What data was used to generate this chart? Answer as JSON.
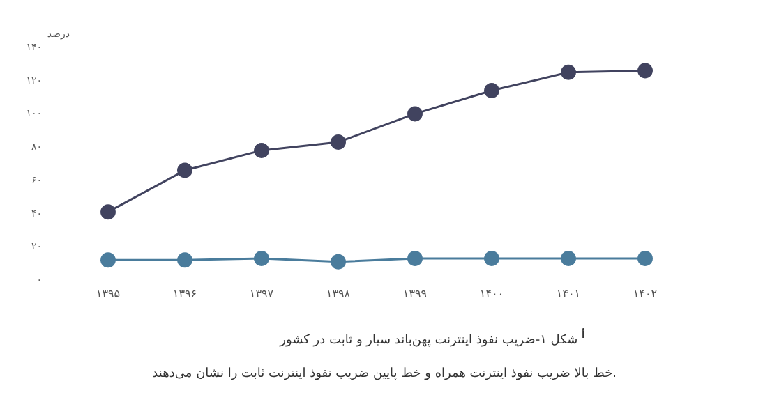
{
  "chart_data": {
    "type": "line",
    "title": "شکل ۱-ضریب نفوذ اینترنت پهن‌باند سیار و ثابت در کشور $^{أ}$",
    "ylabel": "درصد",
    "annotations": [
      "خط بالا ضریب نفوذ اینترنت همراه و خط پایین ضریب نفوذ اینترنت ثابت را نشان می‌دهند."
    ],
    "categories": [
      "۱۳۹۵",
      "۱۳۹۶",
      "۱۳۹۷",
      "۱۳۹۸",
      "۱۳۹۹",
      "۱۴۰۰",
      "۱۴۰۱",
      "۱۴۰۲"
    ],
    "series": [
      {
        "color": "#41435f",
        "values": [
          41,
          66,
          78,
          83,
          100,
          114,
          125,
          126
        ]
      },
      {
        "color": "#4a7c9c",
        "values": [
          12,
          12,
          13,
          11,
          13,
          13,
          13,
          13
        ]
      }
    ],
    "ylim": [
      0,
      140
    ],
    "yticks": [
      {
        "value": 0,
        "label": "۰"
      },
      {
        "value": 20,
        "label": "۲۰"
      },
      {
        "value": 40,
        "label": "۴۰"
      },
      {
        "value": 60,
        "label": "۶۰"
      },
      {
        "value": 80,
        "label": "۸۰"
      },
      {
        "value": 100,
        "label": "۱۰۰"
      },
      {
        "value": 120,
        "label": "۱۲۰"
      },
      {
        "value": 140,
        "label": "۱۴۰"
      }
    ],
    "grid": false,
    "marker": "circle",
    "line_style": "solid"
  }
}
